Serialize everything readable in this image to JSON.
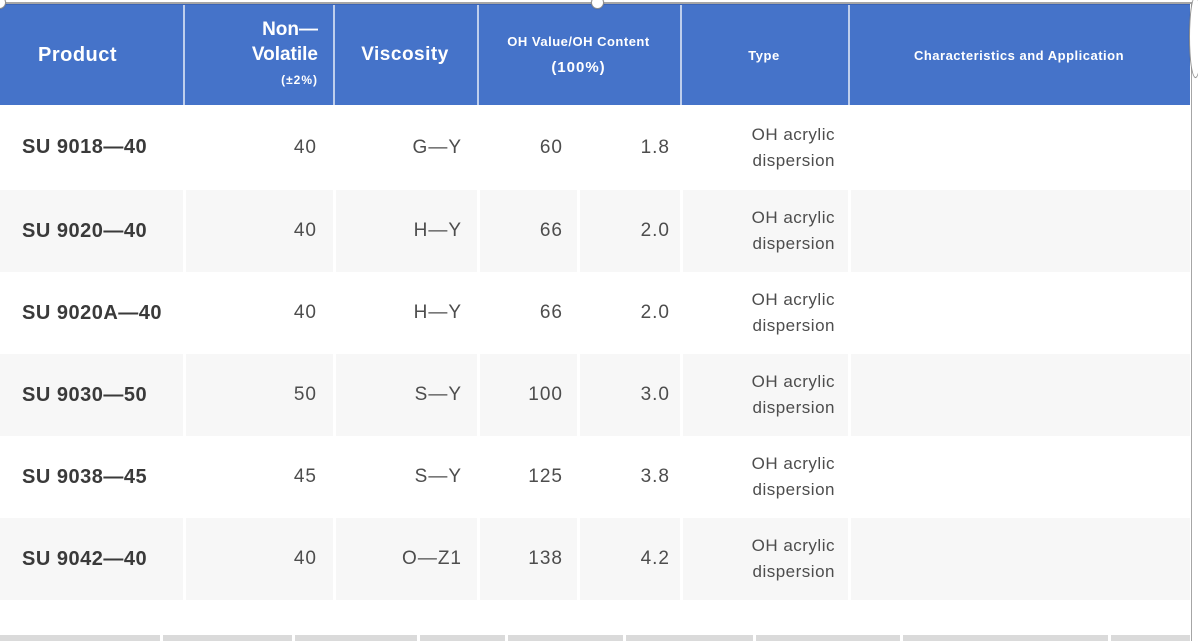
{
  "colors": {
    "header_bg": "#4573C9",
    "header_top": "#3A64B8",
    "header_divider": "rgba(255,255,255,0.65)",
    "row_alt": "#F7F7F7",
    "body_text": "#4D4D4D",
    "product_text": "#3A3A3A",
    "header_text": "#FFFFFF",
    "strip": "#DADADA",
    "selection": "#A6A6A6"
  },
  "table": {
    "header": {
      "product": "Product",
      "non_volatile_line1": "Non—",
      "non_volatile_line2": "Volatile",
      "non_volatile_sub": "(±2%)",
      "viscosity": "Viscosity",
      "oh_line1": "OH Value/OH Content",
      "oh_line2": "(100%)",
      "type": "Type",
      "characteristics": "Characteristics and Application"
    },
    "rows": [
      {
        "product": "SU 9018—40",
        "non_volatile": "40",
        "viscosity": "G—Y",
        "oh_value": "60",
        "oh_content": "1.8",
        "type": "OH acrylic dispersion",
        "characteristics": ""
      },
      {
        "product": "SU 9020—40",
        "non_volatile": "40",
        "viscosity": "H—Y",
        "oh_value": "66",
        "oh_content": "2.0",
        "type": "OH acrylic dispersion",
        "characteristics": ""
      },
      {
        "product": "SU 9020A—40",
        "non_volatile": "40",
        "viscosity": "H—Y",
        "oh_value": "66",
        "oh_content": "2.0",
        "type": "OH acrylic dispersion",
        "characteristics": ""
      },
      {
        "product": "SU 9030—50",
        "non_volatile": "50",
        "viscosity": "S—Y",
        "oh_value": "100",
        "oh_content": "3.0",
        "type": "OH acrylic dispersion",
        "characteristics": ""
      },
      {
        "product": "SU 9038—45",
        "non_volatile": "45",
        "viscosity": "S—Y",
        "oh_value": "125",
        "oh_content": "3.8",
        "type": "OH acrylic dispersion",
        "characteristics": ""
      },
      {
        "product": "SU 9042—40",
        "non_volatile": "40",
        "viscosity": "O—Z1",
        "oh_value": "138",
        "oh_content": "4.2",
        "type": "OH acrylic dispersion",
        "characteristics": ""
      }
    ],
    "header_divider_positions": [
      183,
      333,
      477,
      680,
      848
    ]
  },
  "bottom_strip": {
    "segments": [
      [
        0,
        160
      ],
      [
        163,
        292
      ],
      [
        295,
        417
      ],
      [
        420,
        505
      ],
      [
        508,
        623
      ],
      [
        626,
        753
      ],
      [
        756,
        900
      ],
      [
        903,
        1108
      ],
      [
        1111,
        1190
      ]
    ]
  },
  "selection_handles": [
    "top-left",
    "top-center",
    "top-right"
  ]
}
